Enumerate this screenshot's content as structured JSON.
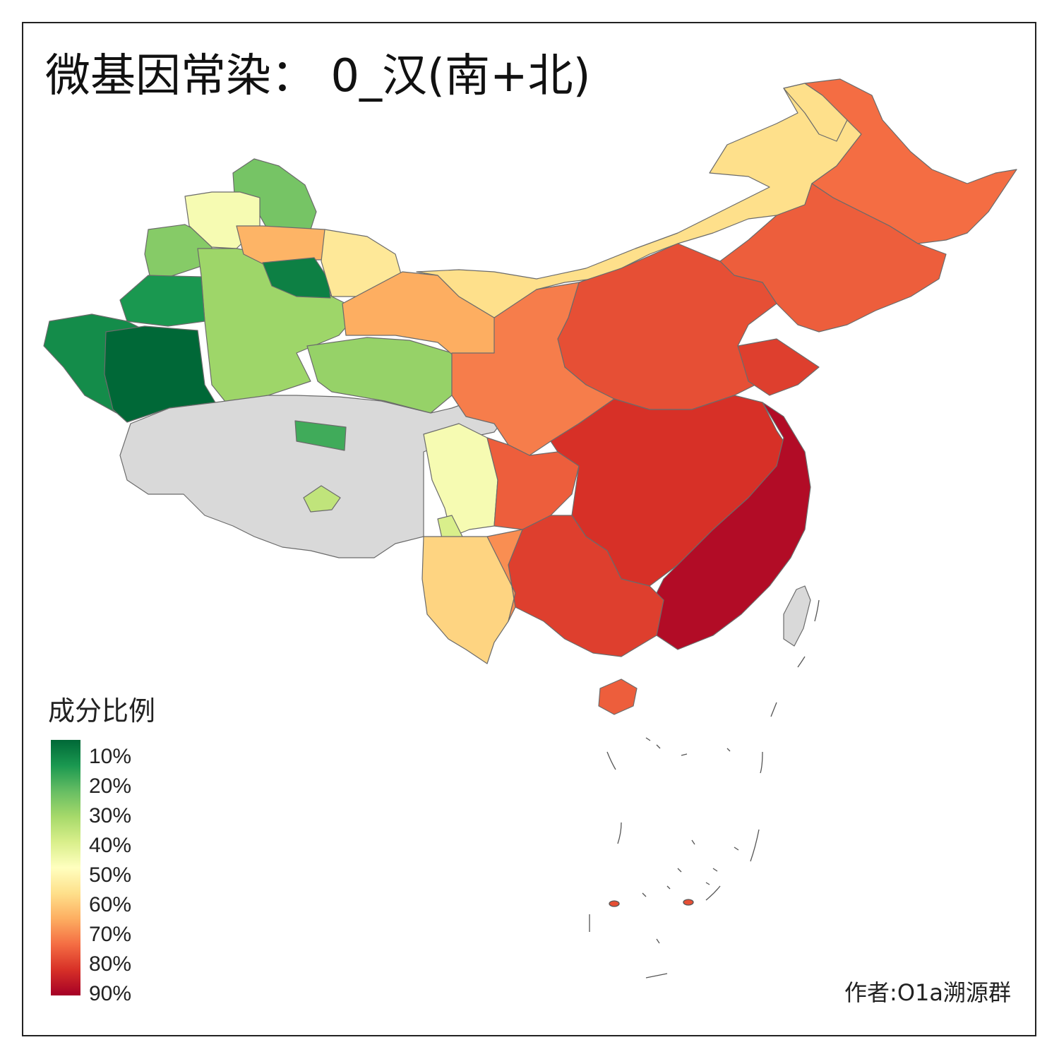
{
  "title": "微基因常染： 0_汉(南+北)",
  "legend": {
    "title": "成分比例",
    "ticks": [
      "10%",
      "20%",
      "30%",
      "40%",
      "50%",
      "60%",
      "70%",
      "80%",
      "90%"
    ],
    "colors": [
      "#006837",
      "#1a9850",
      "#66bd63",
      "#a6d96a",
      "#d9ef8b",
      "#ffffbf",
      "#fee08b",
      "#fdae61",
      "#f46d43",
      "#d73027",
      "#a50026"
    ]
  },
  "no_data_color": "#d9d9d9",
  "author": "作者:O1a溯源群",
  "regions": [
    {
      "name": "xinjiang-north",
      "value": 30
    },
    {
      "name": "xinjiang-altay",
      "value": 28
    },
    {
      "name": "xinjiang-tacheng",
      "value": 48
    },
    {
      "name": "xinjiang-ili",
      "value": 33
    },
    {
      "name": "xinjiang-changji",
      "value": 65
    },
    {
      "name": "xinjiang-turpan",
      "value": 14
    },
    {
      "name": "xinjiang-hami",
      "value": 56
    },
    {
      "name": "xinjiang-aksu",
      "value": 18
    },
    {
      "name": "xinjiang-kashgar",
      "value": 16
    },
    {
      "name": "xinjiang-hotan",
      "value": 8
    },
    {
      "name": "xinjiang-bayingolin",
      "value": 32
    },
    {
      "name": "qinghai-haixi",
      "value": 22
    },
    {
      "name": "gansu-hexi",
      "value": 66
    },
    {
      "name": "tibet",
      "value": null
    },
    {
      "name": "qinghai-south",
      "value": 22
    },
    {
      "name": "tibet-nagqu-spot",
      "value": 38
    },
    {
      "name": "sichuan-west",
      "value": 48
    },
    {
      "name": "yunnan-northwest",
      "value": 42
    },
    {
      "name": "yunnan",
      "value": 60
    },
    {
      "name": "inner-mongolia",
      "value": 58
    },
    {
      "name": "heilongjiang-north",
      "value": 58
    },
    {
      "name": "heilongjiang",
      "value": 74
    },
    {
      "name": "jilin-liaoning",
      "value": 76
    },
    {
      "name": "north-china",
      "value": 78
    },
    {
      "name": "shaanxi-henan",
      "value": 72
    },
    {
      "name": "sichuan-chongqing",
      "value": 76
    },
    {
      "name": "central-china",
      "value": 82
    },
    {
      "name": "southeast-coast",
      "value": 88
    },
    {
      "name": "guangxi-guangdong",
      "value": 80
    },
    {
      "name": "guizhou",
      "value": 70
    },
    {
      "name": "hainan",
      "value": 76
    },
    {
      "name": "taiwan",
      "value": null
    },
    {
      "name": "shandong",
      "value": 80
    }
  ]
}
